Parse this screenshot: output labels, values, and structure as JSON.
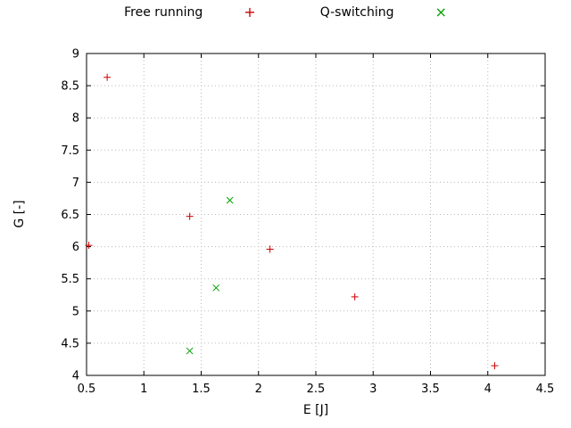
{
  "chart_data": {
    "type": "scatter",
    "title": "",
    "xlabel": "E [J]",
    "ylabel": "G [-]",
    "xlim": [
      0.5,
      4.5
    ],
    "ylim": [
      4,
      9
    ],
    "xticks": [
      0.5,
      1,
      1.5,
      2,
      2.5,
      3,
      3.5,
      4,
      4.5
    ],
    "yticks": [
      4,
      4.5,
      5,
      5.5,
      6,
      6.5,
      7,
      7.5,
      8,
      8.5,
      9
    ],
    "grid": true,
    "grid_color": "#b8b8b8",
    "legend_position": "top-center",
    "marker_glyphs": {
      "plus": "+",
      "cross": "×"
    },
    "series": [
      {
        "name": "Free running",
        "marker": "plus",
        "color": "#cc0000",
        "points": [
          [
            0.52,
            6.02
          ],
          [
            0.68,
            8.63
          ],
          [
            1.4,
            6.47
          ],
          [
            2.1,
            5.96
          ],
          [
            2.84,
            5.22
          ],
          [
            4.06,
            4.15
          ]
        ]
      },
      {
        "name": "Q-switching",
        "marker": "cross",
        "color": "#00a000",
        "points": [
          [
            1.4,
            4.38
          ],
          [
            1.63,
            5.36
          ],
          [
            1.75,
            6.72
          ]
        ]
      }
    ]
  }
}
